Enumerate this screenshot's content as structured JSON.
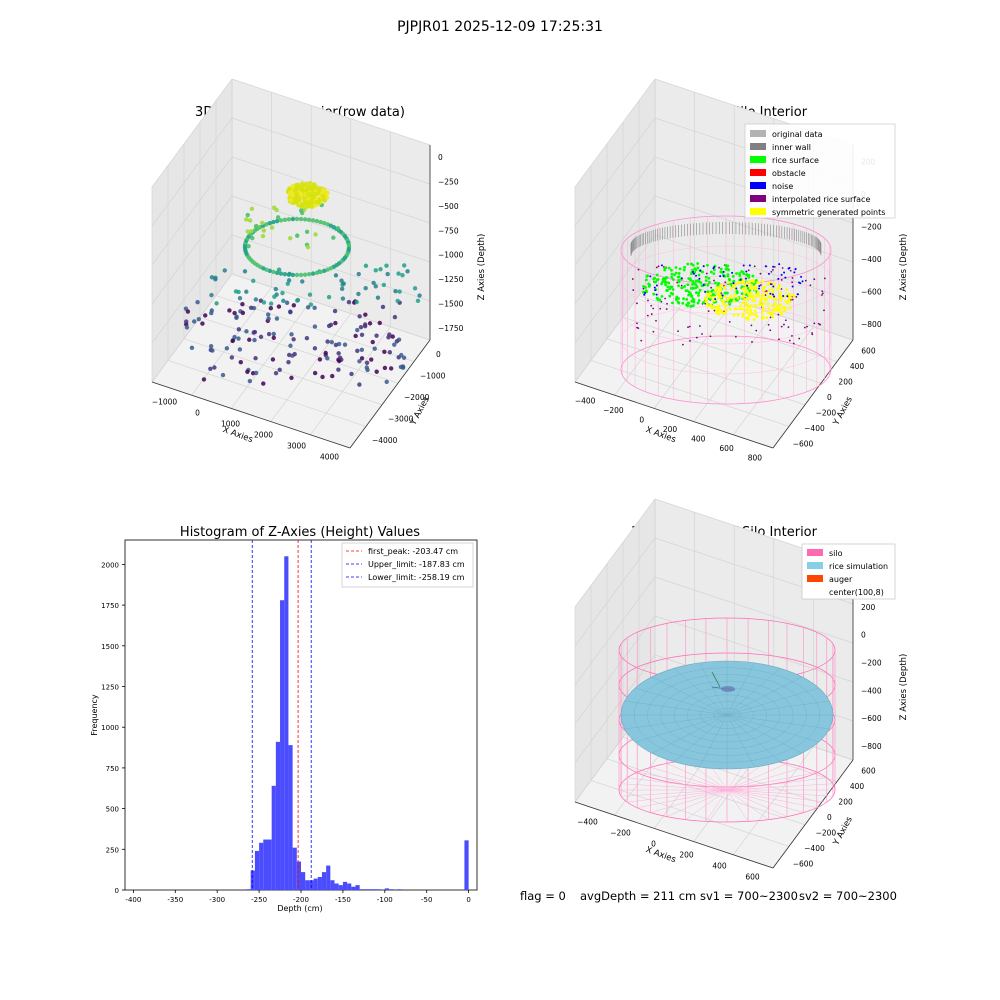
{
  "suptitle": "PJPJR01 2025-12-09 17:25:31",
  "footer": {
    "flag": "flag = 0",
    "avg": "avgDepth = 211 cm",
    "sv1": "sv1 = 700~2300",
    "sv2": "sv2 = 700~2300"
  },
  "chart_data": [
    {
      "type": "scatter",
      "projection": "3d",
      "title": "3D Plot of Silo Interior(row data)",
      "xlabel": "X Axies",
      "ylabel": "Y Axies",
      "zlabel": "Z Axies (Depth)",
      "x_ticks": [
        "−1000",
        "0",
        "1000",
        "2000",
        "3000",
        "4000"
      ],
      "y_ticks": [
        "−4000",
        "−3000",
        "−2000",
        "−1000",
        "0"
      ],
      "z_ticks": [
        "−1750",
        "−1500",
        "−1250",
        "−1000",
        "−750",
        "−500",
        "−250",
        "0"
      ],
      "colormap": "viridis"
    },
    {
      "type": "scatter",
      "projection": "3d",
      "title": "3D classify of Silo Interior",
      "xlabel": "X Axies",
      "ylabel": "Y Axies",
      "zlabel": "Z Axies (Depth)",
      "x_ticks": [
        "−400",
        "−200",
        "0",
        "200",
        "400",
        "600",
        "800"
      ],
      "y_ticks": [
        "−600",
        "−400",
        "−200",
        "0",
        "200",
        "400",
        "600"
      ],
      "z_ticks": [
        "−800",
        "−600",
        "−400",
        "−200",
        "0",
        "200"
      ],
      "legend_position": "top-right",
      "legend": [
        {
          "label": "original data",
          "color": "#b3b3b3"
        },
        {
          "label": "inner wall",
          "color": "#808080"
        },
        {
          "label": "rice surface",
          "color": "#00ff00"
        },
        {
          "label": "obstacle",
          "color": "#ff0000"
        },
        {
          "label": "noise",
          "color": "#0000ff"
        },
        {
          "label": "interpolated rice surface",
          "color": "#800080"
        },
        {
          "label": "symmetric generated points",
          "color": "#ffff00"
        }
      ]
    },
    {
      "type": "bar",
      "title": "Histogram of Z-Axies (Height) Values",
      "xlabel": "Depth (cm)",
      "ylabel": "Frequency",
      "xlim": [
        -410,
        10
      ],
      "ylim": [
        0,
        2150
      ],
      "x_ticks": [
        -400,
        -350,
        -300,
        -250,
        -200,
        -150,
        -100,
        -50,
        0
      ],
      "y_ticks": [
        0,
        250,
        500,
        750,
        1000,
        1250,
        1500,
        1750,
        2000
      ],
      "bin_width": 5,
      "bins": [
        {
          "x": -265,
          "value": 5
        },
        {
          "x": -260,
          "value": 120
        },
        {
          "x": -255,
          "value": 240
        },
        {
          "x": -250,
          "value": 290
        },
        {
          "x": -245,
          "value": 310
        },
        {
          "x": -240,
          "value": 310
        },
        {
          "x": -235,
          "value": 640
        },
        {
          "x": -230,
          "value": 910
        },
        {
          "x": -225,
          "value": 1780
        },
        {
          "x": -220,
          "value": 2050
        },
        {
          "x": -215,
          "value": 890
        },
        {
          "x": -210,
          "value": 260
        },
        {
          "x": -205,
          "value": 175
        },
        {
          "x": -200,
          "value": 110
        },
        {
          "x": -195,
          "value": 60
        },
        {
          "x": -190,
          "value": 60
        },
        {
          "x": -185,
          "value": 70
        },
        {
          "x": -180,
          "value": 80
        },
        {
          "x": -175,
          "value": 110
        },
        {
          "x": -170,
          "value": 150
        },
        {
          "x": -165,
          "value": 60
        },
        {
          "x": -160,
          "value": 40
        },
        {
          "x": -155,
          "value": 30
        },
        {
          "x": -150,
          "value": 50
        },
        {
          "x": -145,
          "value": 40
        },
        {
          "x": -140,
          "value": 20
        },
        {
          "x": -135,
          "value": 30
        },
        {
          "x": -130,
          "value": 5
        },
        {
          "x": -125,
          "value": 5
        },
        {
          "x": -120,
          "value": 5
        },
        {
          "x": -115,
          "value": 5
        },
        {
          "x": -110,
          "value": 5
        },
        {
          "x": -100,
          "value": 10
        },
        {
          "x": -95,
          "value": 5
        },
        {
          "x": -85,
          "value": 5
        },
        {
          "x": -5,
          "value": 305
        }
      ],
      "vlines": [
        {
          "label": "first_peak: -203.47 cm",
          "x": -203.47,
          "color": "#ff0000"
        },
        {
          "label": "Upper_limit: -187.83 cm",
          "x": -187.83,
          "color": "#0000ff"
        },
        {
          "label": "Lower_limit: -258.19 cm",
          "x": -258.19,
          "color": "#0000ff"
        }
      ],
      "bar_color": "#4c4cff",
      "legend_position": "top-right"
    },
    {
      "type": "surface",
      "projection": "3d",
      "title": "3D simulation of Silo Interior",
      "xlabel": "X Axies",
      "ylabel": "Y Axies",
      "zlabel": "Z Axies (Depth)",
      "x_ticks": [
        "−400",
        "−200",
        "0",
        "200",
        "400",
        "600"
      ],
      "y_ticks": [
        "−600",
        "−400",
        "−200",
        "0",
        "200",
        "400",
        "600"
      ],
      "z_ticks": [
        "−800",
        "−600",
        "−400",
        "−200",
        "0",
        "200",
        "400"
      ],
      "legend_position": "top-right",
      "legend": [
        {
          "label": "silo",
          "color": "#ff69b4"
        },
        {
          "label": "rice simulation",
          "color": "#87ceeb"
        },
        {
          "label": "auger",
          "color": "#ff4500"
        },
        {
          "label": "center(100,8)",
          "color": "#ffffff"
        }
      ]
    }
  ]
}
